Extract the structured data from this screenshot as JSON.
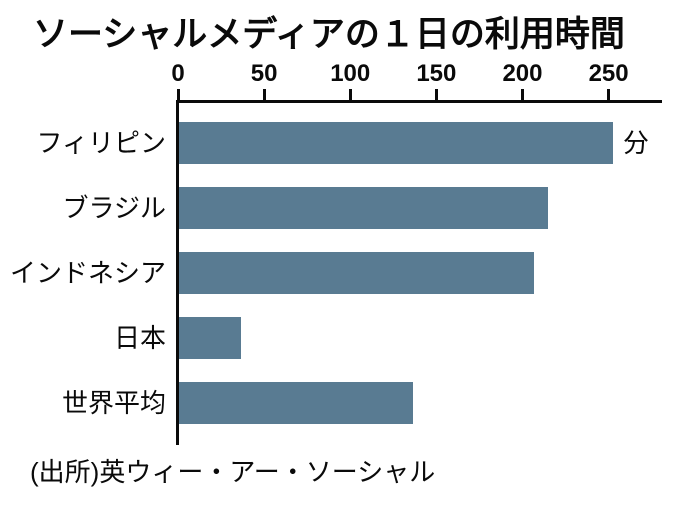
{
  "title": "ソーシャルメディアの１日の利用時間",
  "source": "(出所)英ウィー・アー・ソーシャル",
  "unit_label": "分",
  "colors": {
    "bar": "#597b92",
    "axis": "#0a0a0a",
    "text": "#0a0a0a",
    "background": "#ffffff"
  },
  "chart_data": {
    "type": "bar",
    "orientation": "horizontal",
    "title": "ソーシャルメディアの１日の利用時間",
    "categories": [
      "フィリピン",
      "ブラジル",
      "インドネシア",
      "日本",
      "世界平均"
    ],
    "values": [
      252,
      214,
      206,
      36,
      136
    ],
    "unit": "分",
    "xlim": [
      0,
      281
    ],
    "ticks": [
      0,
      50,
      100,
      150,
      200,
      250
    ],
    "grid": false,
    "legend": false,
    "source": "(出所)英ウィー・アー・ソーシャル"
  }
}
